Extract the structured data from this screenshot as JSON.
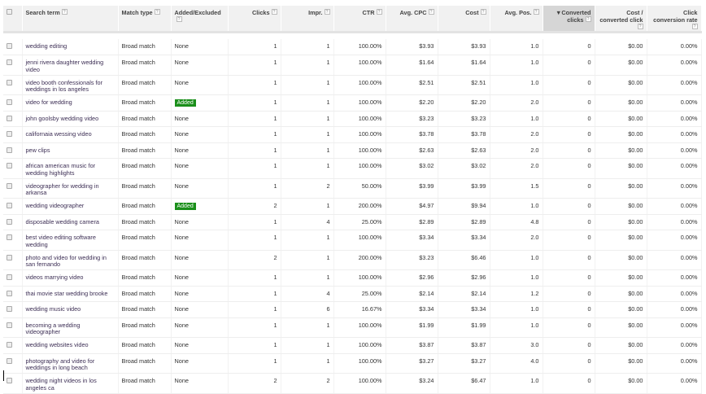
{
  "columns": [
    {
      "label": "Search term",
      "help": "?"
    },
    {
      "label": "Match type",
      "help": "?"
    },
    {
      "label": "Added/Excluded",
      "help": "?"
    },
    {
      "label": "Clicks",
      "help": "?"
    },
    {
      "label": "Impr.",
      "help": "?"
    },
    {
      "label": "CTR",
      "help": "?"
    },
    {
      "label": "Avg. CPC",
      "help": "?"
    },
    {
      "label": "Cost",
      "help": "?"
    },
    {
      "label": "Avg. Pos.",
      "help": "?"
    },
    {
      "label": "Converted clicks",
      "help": "?",
      "sort_indicator": "▼",
      "sorted": true
    },
    {
      "label": "Cost / converted click",
      "help": "?"
    },
    {
      "label": "Click conversion rate",
      "help": "?"
    }
  ],
  "added_color": "#1a8f1a",
  "rows": [
    [
      "wedding editing",
      "Broad match",
      "None",
      "1",
      "1",
      "100.00%",
      "$3.93",
      "$3.93",
      "1.0",
      "0",
      "$0.00",
      "0.00%"
    ],
    [
      "jenni rivera daughter wedding video",
      "Broad match",
      "None",
      "1",
      "1",
      "100.00%",
      "$1.64",
      "$1.64",
      "1.0",
      "0",
      "$0.00",
      "0.00%"
    ],
    [
      "video booth confessionals for weddings in los angeles",
      "Broad match",
      "None",
      "1",
      "1",
      "100.00%",
      "$2.51",
      "$2.51",
      "1.0",
      "0",
      "$0.00",
      "0.00%"
    ],
    [
      "video for wedding",
      "Broad match",
      "Added",
      "1",
      "1",
      "100.00%",
      "$2.20",
      "$2.20",
      "2.0",
      "0",
      "$0.00",
      "0.00%"
    ],
    [
      "john goolsby wedding video",
      "Broad match",
      "None",
      "1",
      "1",
      "100.00%",
      "$3.23",
      "$3.23",
      "1.0",
      "0",
      "$0.00",
      "0.00%"
    ],
    [
      "californaia wessing video",
      "Broad match",
      "None",
      "1",
      "1",
      "100.00%",
      "$3.78",
      "$3.78",
      "2.0",
      "0",
      "$0.00",
      "0.00%"
    ],
    [
      "pew clips",
      "Broad match",
      "None",
      "1",
      "1",
      "100.00%",
      "$2.63",
      "$2.63",
      "2.0",
      "0",
      "$0.00",
      "0.00%"
    ],
    [
      "african american music for wedding highlights",
      "Broad match",
      "None",
      "1",
      "1",
      "100.00%",
      "$3.02",
      "$3.02",
      "2.0",
      "0",
      "$0.00",
      "0.00%"
    ],
    [
      "videographer for wedding in arkansa",
      "Broad match",
      "None",
      "1",
      "2",
      "50.00%",
      "$3.99",
      "$3.99",
      "1.5",
      "0",
      "$0.00",
      "0.00%"
    ],
    [
      "wedding videographer",
      "Broad match",
      "Added",
      "2",
      "1",
      "200.00%",
      "$4.97",
      "$9.94",
      "1.0",
      "0",
      "$0.00",
      "0.00%"
    ],
    [
      "disposable wedding camera",
      "Broad match",
      "None",
      "1",
      "4",
      "25.00%",
      "$2.89",
      "$2.89",
      "4.8",
      "0",
      "$0.00",
      "0.00%"
    ],
    [
      "best video editing software wedding",
      "Broad match",
      "None",
      "1",
      "1",
      "100.00%",
      "$3.34",
      "$3.34",
      "2.0",
      "0",
      "$0.00",
      "0.00%"
    ],
    [
      "photo and video for wedding in san fernando",
      "Broad match",
      "None",
      "2",
      "1",
      "200.00%",
      "$3.23",
      "$6.46",
      "1.0",
      "0",
      "$0.00",
      "0.00%"
    ],
    [
      "videos marrying video",
      "Broad match",
      "None",
      "1",
      "1",
      "100.00%",
      "$2.96",
      "$2.96",
      "1.0",
      "0",
      "$0.00",
      "0.00%"
    ],
    [
      "thai movie star wedding brooke",
      "Broad match",
      "None",
      "1",
      "4",
      "25.00%",
      "$2.14",
      "$2.14",
      "1.2",
      "0",
      "$0.00",
      "0.00%"
    ],
    [
      "wedding music video",
      "Broad match",
      "None",
      "1",
      "6",
      "16.67%",
      "$3.34",
      "$3.34",
      "1.0",
      "0",
      "$0.00",
      "0.00%"
    ],
    [
      "becoming a wedding videographer",
      "Broad match",
      "None",
      "1",
      "1",
      "100.00%",
      "$1.99",
      "$1.99",
      "1.0",
      "0",
      "$0.00",
      "0.00%"
    ],
    [
      "wedding websites video",
      "Broad match",
      "None",
      "1",
      "1",
      "100.00%",
      "$3.87",
      "$3.87",
      "3.0",
      "0",
      "$0.00",
      "0.00%"
    ],
    [
      "photography and video for weddings in long beach",
      "Broad match",
      "None",
      "1",
      "1",
      "100.00%",
      "$3.27",
      "$3.27",
      "4.0",
      "0",
      "$0.00",
      "0.00%"
    ],
    [
      "wedding night videos in los angeles ca",
      "Broad match",
      "None",
      "2",
      "2",
      "100.00%",
      "$3.24",
      "$6.47",
      "1.0",
      "0",
      "$0.00",
      "0.00%"
    ]
  ]
}
